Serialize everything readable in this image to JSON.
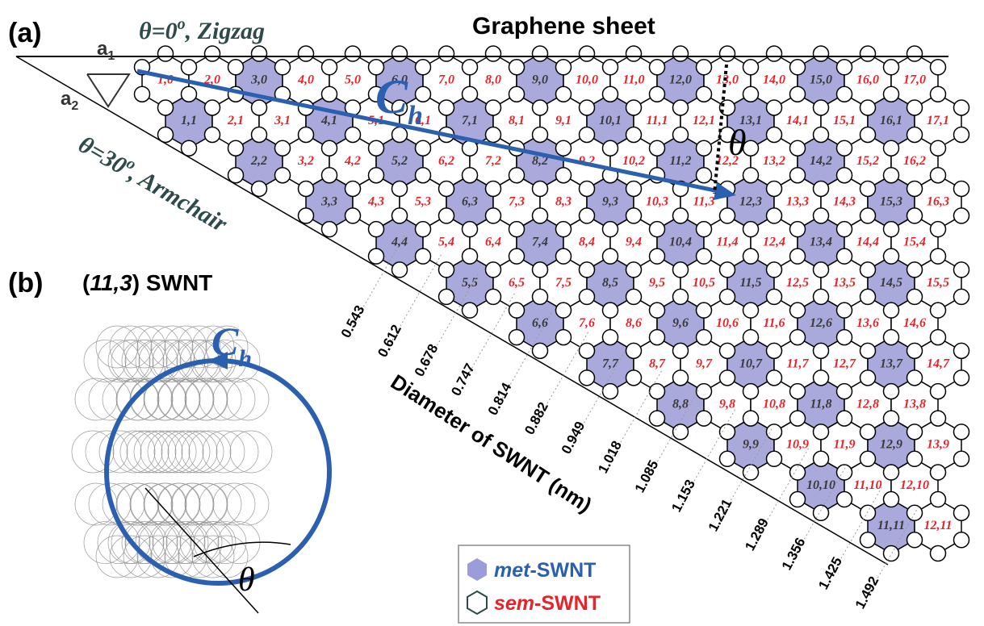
{
  "panel_a": {
    "label": "(a)",
    "title": "Graphene sheet",
    "zigzag": {
      "prefix": "θ=0",
      "sup": "o",
      "suffix": ", Zigzag"
    },
    "armchair": {
      "prefix": "θ=30",
      "sup": "o",
      "suffix": ", Armchair"
    },
    "a1": {
      "main": "a",
      "sub": "1"
    },
    "a2": {
      "main": "a",
      "sub": "2"
    },
    "ch": {
      "main": "C",
      "sub": "h"
    },
    "theta": "θ"
  },
  "hexagon_rows": [
    [
      {
        "label": "1,0",
        "metallic": false
      },
      {
        "label": "2,0",
        "metallic": false
      },
      {
        "label": "3,0",
        "metallic": true
      },
      {
        "label": "4,0",
        "metallic": false
      },
      {
        "label": "5,0",
        "metallic": false
      },
      {
        "label": "6,0",
        "metallic": true
      },
      {
        "label": "7,0",
        "metallic": false
      },
      {
        "label": "8,0",
        "metallic": false
      },
      {
        "label": "9,0",
        "metallic": true
      },
      {
        "label": "10,0",
        "metallic": false
      },
      {
        "label": "11,0",
        "metallic": false
      },
      {
        "label": "12,0",
        "metallic": true
      },
      {
        "label": "13,0",
        "metallic": false
      },
      {
        "label": "14,0",
        "metallic": false
      },
      {
        "label": "15,0",
        "metallic": true
      },
      {
        "label": "16,0",
        "metallic": false
      },
      {
        "label": "17,0",
        "metallic": false
      }
    ],
    [
      {
        "label": "1,1",
        "metallic": true
      },
      {
        "label": "2,1",
        "metallic": false
      },
      {
        "label": "3,1",
        "metallic": false
      },
      {
        "label": "4,1",
        "metallic": true
      },
      {
        "label": "5,1",
        "metallic": false
      },
      {
        "label": "6,1",
        "metallic": false
      },
      {
        "label": "7,1",
        "metallic": true
      },
      {
        "label": "8,1",
        "metallic": false
      },
      {
        "label": "9,1",
        "metallic": false
      },
      {
        "label": "10,1",
        "metallic": true
      },
      {
        "label": "11,1",
        "metallic": false
      },
      {
        "label": "12,1",
        "metallic": false
      },
      {
        "label": "13,1",
        "metallic": true
      },
      {
        "label": "14,1",
        "metallic": false
      },
      {
        "label": "15,1",
        "metallic": false
      },
      {
        "label": "16,1",
        "metallic": true
      },
      {
        "label": "17,1",
        "metallic": false
      }
    ],
    [
      {
        "label": "2,2",
        "metallic": true
      },
      {
        "label": "3,2",
        "metallic": false
      },
      {
        "label": "4,2",
        "metallic": false
      },
      {
        "label": "5,2",
        "metallic": true
      },
      {
        "label": "6,2",
        "metallic": false
      },
      {
        "label": "7,2",
        "metallic": false
      },
      {
        "label": "8,2",
        "metallic": true
      },
      {
        "label": "9,2",
        "metallic": false
      },
      {
        "label": "10,2",
        "metallic": false
      },
      {
        "label": "11,2",
        "metallic": true
      },
      {
        "label": "12,2",
        "metallic": false
      },
      {
        "label": "13,2",
        "metallic": false
      },
      {
        "label": "14,2",
        "metallic": true
      },
      {
        "label": "15,2",
        "metallic": false
      },
      {
        "label": "16,2",
        "metallic": false
      }
    ],
    [
      {
        "label": "3,3",
        "metallic": true
      },
      {
        "label": "4,3",
        "metallic": false
      },
      {
        "label": "5,3",
        "metallic": false
      },
      {
        "label": "6,3",
        "metallic": true
      },
      {
        "label": "7,3",
        "metallic": false
      },
      {
        "label": "8,3",
        "metallic": false
      },
      {
        "label": "9,3",
        "metallic": true
      },
      {
        "label": "10,3",
        "metallic": false
      },
      {
        "label": "11,3",
        "metallic": false
      },
      {
        "label": "12,3",
        "metallic": true
      },
      {
        "label": "13,3",
        "metallic": false
      },
      {
        "label": "14,3",
        "metallic": false
      },
      {
        "label": "15,3",
        "metallic": true
      },
      {
        "label": "16,3",
        "metallic": false
      }
    ],
    [
      {
        "label": "4,4",
        "metallic": true
      },
      {
        "label": "5,4",
        "metallic": false
      },
      {
        "label": "6,4",
        "metallic": false
      },
      {
        "label": "7,4",
        "metallic": true
      },
      {
        "label": "8,4",
        "metallic": false
      },
      {
        "label": "9,4",
        "metallic": false
      },
      {
        "label": "10,4",
        "metallic": true
      },
      {
        "label": "11,4",
        "metallic": false
      },
      {
        "label": "12,4",
        "metallic": false
      },
      {
        "label": "13,4",
        "metallic": true
      },
      {
        "label": "14,4",
        "metallic": false
      },
      {
        "label": "15,4",
        "metallic": false
      }
    ],
    [
      {
        "label": "5,5",
        "metallic": true
      },
      {
        "label": "6,5",
        "metallic": false
      },
      {
        "label": "7,5",
        "metallic": false
      },
      {
        "label": "8,5",
        "metallic": true
      },
      {
        "label": "9,5",
        "metallic": false
      },
      {
        "label": "10,5",
        "metallic": false
      },
      {
        "label": "11,5",
        "metallic": true
      },
      {
        "label": "12,5",
        "metallic": false
      },
      {
        "label": "13,5",
        "metallic": false
      },
      {
        "label": "14,5",
        "metallic": true
      },
      {
        "label": "15,5",
        "metallic": false
      }
    ],
    [
      {
        "label": "6,6",
        "metallic": true
      },
      {
        "label": "7,6",
        "metallic": false
      },
      {
        "label": "8,6",
        "metallic": false
      },
      {
        "label": "9,6",
        "metallic": true
      },
      {
        "label": "10,6",
        "metallic": false
      },
      {
        "label": "11,6",
        "metallic": false
      },
      {
        "label": "12,6",
        "metallic": true
      },
      {
        "label": "13,6",
        "metallic": false
      },
      {
        "label": "14,6",
        "metallic": false
      }
    ],
    [
      {
        "label": "7,7",
        "metallic": true
      },
      {
        "label": "8,7",
        "metallic": false
      },
      {
        "label": "9,7",
        "metallic": false
      },
      {
        "label": "10,7",
        "metallic": true
      },
      {
        "label": "11,7",
        "metallic": false
      },
      {
        "label": "12,7",
        "metallic": false
      },
      {
        "label": "13,7",
        "metallic": true
      },
      {
        "label": "14,7",
        "metallic": false
      }
    ],
    [
      {
        "label": "8,8",
        "metallic": true
      },
      {
        "label": "9,8",
        "metallic": false
      },
      {
        "label": "10,8",
        "metallic": false
      },
      {
        "label": "11,8",
        "metallic": true
      },
      {
        "label": "12,8",
        "metallic": false
      },
      {
        "label": "13,8",
        "metallic": false
      }
    ],
    [
      {
        "label": "9,9",
        "metallic": true
      },
      {
        "label": "10,9",
        "metallic": false
      },
      {
        "label": "11,9",
        "metallic": false
      },
      {
        "label": "12,9",
        "metallic": true
      },
      {
        "label": "13,9",
        "metallic": false
      }
    ],
    [
      {
        "label": "10,10",
        "metallic": true
      },
      {
        "label": "11,10",
        "metallic": false
      },
      {
        "label": "12,10",
        "metallic": false
      }
    ],
    [
      {
        "label": "11,11",
        "metallic": true
      },
      {
        "label": "12,11",
        "metallic": false
      }
    ]
  ],
  "diameter_axis": {
    "label": "Diameter of SWNT (nm)",
    "values": [
      0.543,
      0.612,
      0.678,
      0.747,
      0.814,
      0.882,
      0.949,
      1.018,
      1.085,
      1.153,
      1.221,
      1.289,
      1.356,
      1.425,
      1.492
    ]
  },
  "panel_b": {
    "label": "(b)",
    "tube_prefix": "(",
    "tube_index": "11,3",
    "tube_suffix": ") SWNT",
    "ch": {
      "main": "C",
      "sub": "h"
    },
    "theta": "θ"
  },
  "legend": {
    "met": {
      "prefix": "met",
      "suffix": "-SWNT"
    },
    "sem": {
      "prefix": "sem",
      "suffix": "-SWNT"
    }
  }
}
